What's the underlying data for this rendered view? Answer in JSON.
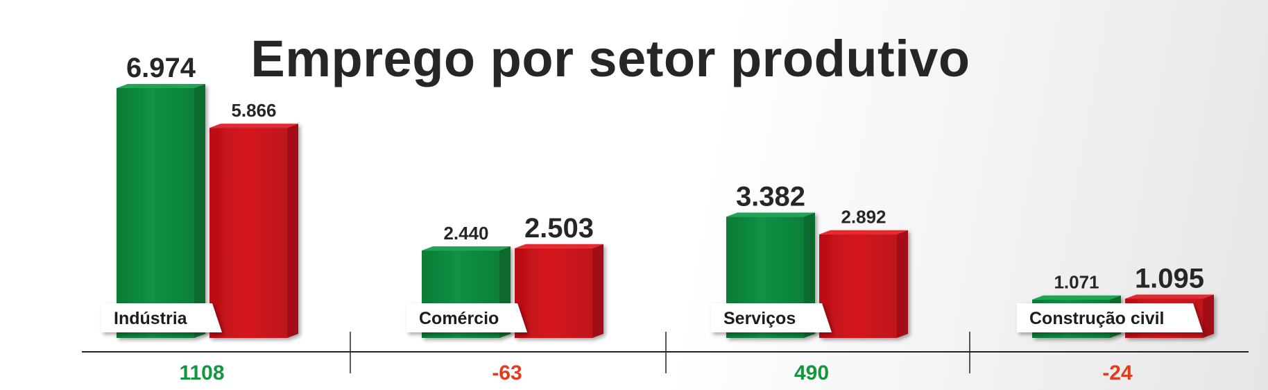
{
  "chart_data": {
    "type": "bar",
    "title": "Emprego por setor produtivo",
    "categories": [
      "Indústria",
      "Comércio",
      "Serviços",
      "Construção civil"
    ],
    "series": [
      {
        "values": [
          6974,
          2440,
          3382,
          1071
        ],
        "value_labels": [
          "6.974",
          "2.440",
          "3.382",
          "1.071"
        ]
      },
      {
        "values": [
          5866,
          2503,
          2892,
          1095
        ],
        "value_labels": [
          "5.866",
          "2.503",
          "2.892",
          "1.095"
        ]
      }
    ],
    "differences": [
      1108,
      -63,
      490,
      -24
    ],
    "difference_labels": [
      "1108",
      "-63",
      "490",
      "-24"
    ],
    "xlabel": "",
    "ylabel": "",
    "grid": false,
    "legend": "none",
    "colors": {
      "series1": "#0f8a3e",
      "series2": "#d0141c",
      "positive": "#14963f",
      "negative": "#e53a1e",
      "axis": "#222222",
      "text": "#262626"
    }
  }
}
